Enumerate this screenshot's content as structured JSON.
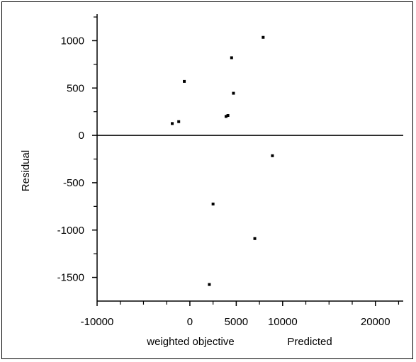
{
  "chart_data": {
    "type": "scatter",
    "title": "",
    "xlabel": "weighted objective",
    "xlabel2": "Predicted",
    "ylabel": "Residual",
    "xlim": [
      -10000,
      23000
    ],
    "ylim": [
      -1750,
      1280
    ],
    "x_ticks": [
      -10000,
      0,
      5000,
      10000,
      20000
    ],
    "x_tick_labels": [
      "-10000",
      "0",
      "5000",
      "10000",
      "20000"
    ],
    "x_minor_ticks": [
      -7500,
      -5000,
      -2500,
      2500,
      7500,
      12500,
      15000,
      17500,
      22500
    ],
    "y_ticks": [
      1000,
      500,
      0,
      -500,
      -1000,
      -1500
    ],
    "y_tick_labels": [
      "1000",
      "500",
      "0",
      "-500",
      "-1000",
      "-1500"
    ],
    "y_minor_ticks": [
      1250,
      750,
      250,
      -250,
      -750,
      -1250
    ],
    "reference_line_y": 0,
    "grid": false,
    "points": [
      {
        "x": -1900,
        "y": 125
      },
      {
        "x": -1200,
        "y": 145
      },
      {
        "x": -600,
        "y": 570
      },
      {
        "x": 3900,
        "y": 200
      },
      {
        "x": 4100,
        "y": 210
      },
      {
        "x": 4500,
        "y": 820
      },
      {
        "x": 4700,
        "y": 445
      },
      {
        "x": 7900,
        "y": 1035
      },
      {
        "x": 8900,
        "y": -215
      },
      {
        "x": 2500,
        "y": -725
      },
      {
        "x": 7000,
        "y": -1090
      },
      {
        "x": 2100,
        "y": -1575
      }
    ]
  }
}
